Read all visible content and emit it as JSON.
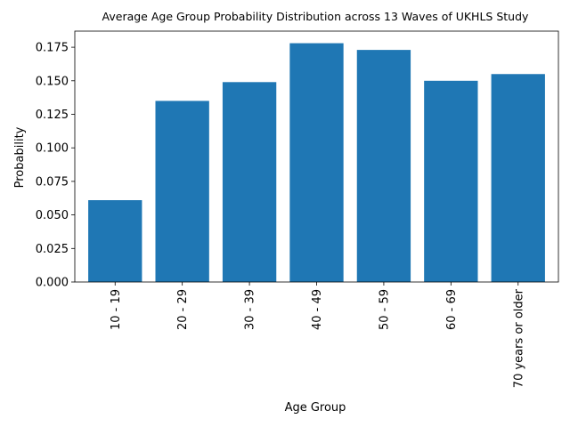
{
  "chart_data": {
    "type": "bar",
    "title": "Average Age Group Probability Distribution across 13 Waves of UKHLS Study",
    "xlabel": "Age Group",
    "ylabel": "Probability",
    "categories": [
      "10 - 19",
      "20 - 29",
      "30 - 39",
      "40 - 49",
      "50 - 59",
      "60 - 69",
      "70 years or older"
    ],
    "values": [
      0.061,
      0.135,
      0.149,
      0.178,
      0.173,
      0.15,
      0.155
    ],
    "ylim": [
      0,
      0.187
    ],
    "yticks": [
      0.0,
      0.025,
      0.05,
      0.075,
      0.1,
      0.125,
      0.15,
      0.175
    ],
    "ytick_labels": [
      "0.000",
      "0.025",
      "0.050",
      "0.075",
      "0.100",
      "0.125",
      "0.150",
      "0.175"
    ],
    "bar_color": "#1f77b4",
    "grid": false,
    "legend": "none"
  }
}
